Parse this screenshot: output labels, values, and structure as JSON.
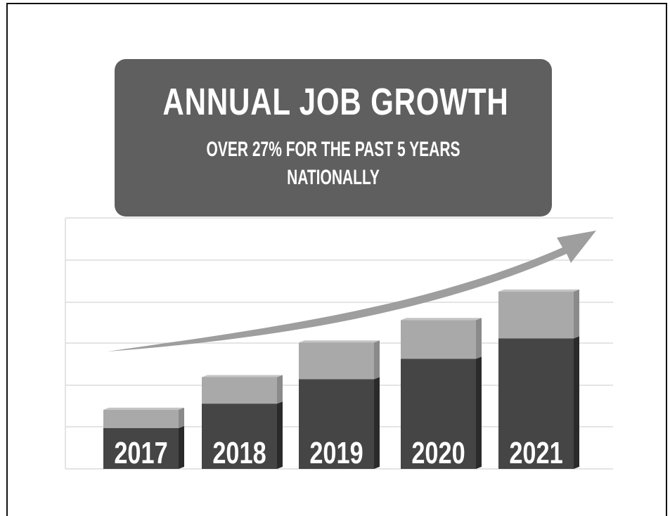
{
  "chart_data": {
    "type": "bar",
    "title": "ANNUAL JOB GROWTH",
    "subtitle": "OVER 27% FOR THE PAST 5 YEARS",
    "subtitle_2": "NATIONALLY",
    "categories": [
      "2017",
      "2018",
      "2019",
      "2020",
      "2021"
    ],
    "series": [
      {
        "values": [
          1.0,
          1.6,
          2.2,
          2.7,
          3.2
        ]
      },
      {
        "values": [
          0.45,
          0.65,
          0.9,
          0.95,
          1.15
        ]
      }
    ],
    "stacked": true,
    "ylim": [
      0,
      6
    ],
    "grid": true,
    "trend_arrow": true,
    "colors": {
      "series_dark": "#454545",
      "series_light": "#a9a9a9",
      "side_dark": "#2a2a2a",
      "side_light": "#8a8a8a",
      "top_face": "#c4c4c4",
      "banner": "#5f5f5f",
      "grid": "#dcdcdc",
      "arrow": "#9e9e9e"
    }
  }
}
